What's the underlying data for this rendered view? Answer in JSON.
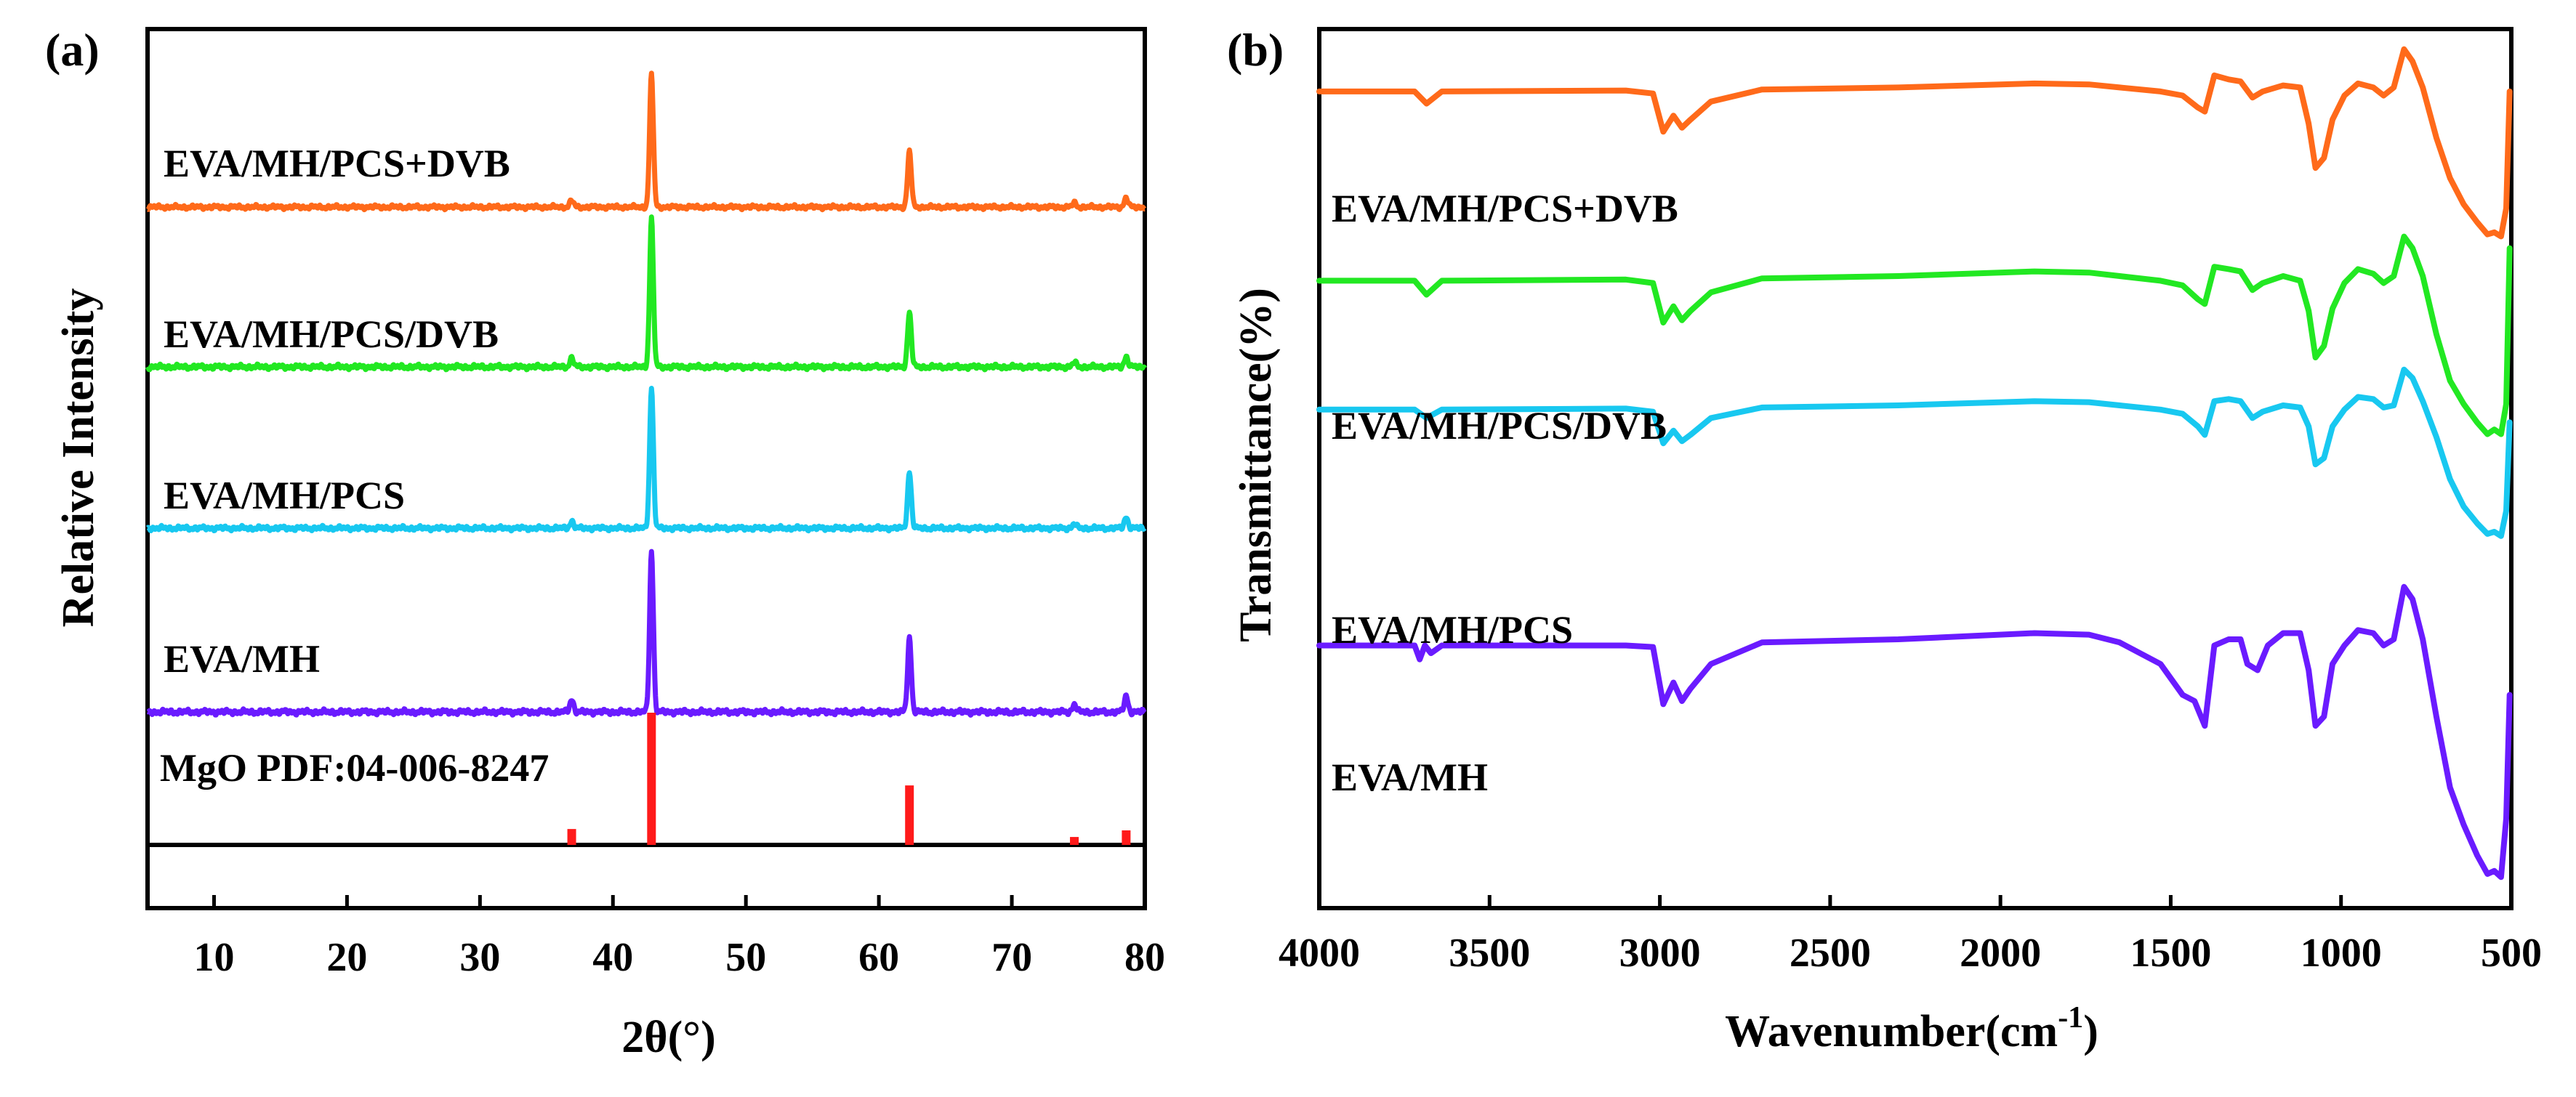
{
  "chart_data": [
    {
      "panel": "(a)",
      "type": "line",
      "xlabel": "2θ(°)",
      "ylabel": "Relative Intensity",
      "xlim": [
        5,
        80
      ],
      "xticks": [
        10,
        20,
        30,
        40,
        50,
        60,
        70,
        80
      ],
      "reference": {
        "label": "MgO PDF:04-006-8247",
        "color": "#ff1a1a",
        "peaks": [
          {
            "x": 36.9,
            "intensity": 12
          },
          {
            "x": 42.9,
            "intensity": 100
          },
          {
            "x": 62.3,
            "intensity": 45
          },
          {
            "x": 74.7,
            "intensity": 6
          },
          {
            "x": 78.6,
            "intensity": 11
          }
        ]
      },
      "series": [
        {
          "name": "EVA/MH",
          "color": "#6a1bff",
          "peaks": [
            {
              "x": 36.9,
              "intensity": 8
            },
            {
              "x": 42.9,
              "intensity": 100
            },
            {
              "x": 62.3,
              "intensity": 46
            },
            {
              "x": 74.7,
              "intensity": 5
            },
            {
              "x": 78.6,
              "intensity": 10
            }
          ]
        },
        {
          "name": "EVA/MH/PCS",
          "color": "#18c8f0",
          "peaks": [
            {
              "x": 36.9,
              "intensity": 5
            },
            {
              "x": 42.9,
              "intensity": 100
            },
            {
              "x": 62.3,
              "intensity": 40
            },
            {
              "x": 74.7,
              "intensity": 3
            },
            {
              "x": 78.6,
              "intensity": 8
            }
          ]
        },
        {
          "name": "EVA/MH/PCS/DVB",
          "color": "#22e822",
          "peaks": [
            {
              "x": 36.9,
              "intensity": 6
            },
            {
              "x": 42.9,
              "intensity": 100
            },
            {
              "x": 62.3,
              "intensity": 37
            },
            {
              "x": 74.7,
              "intensity": 3
            },
            {
              "x": 78.6,
              "intensity": 7
            }
          ]
        },
        {
          "name": "EVA/MH/PCS+DVB",
          "color": "#ff6a1a",
          "peaks": [
            {
              "x": 36.9,
              "intensity": 5
            },
            {
              "x": 42.9,
              "intensity": 100
            },
            {
              "x": 62.3,
              "intensity": 42
            },
            {
              "x": 74.7,
              "intensity": 3
            },
            {
              "x": 78.6,
              "intensity": 7
            }
          ]
        }
      ]
    },
    {
      "panel": "(b)",
      "type": "line",
      "xlabel": "Wavenumber(cm-1)",
      "xlabel_main": "Wavenumber(cm",
      "xlabel_sup": "-1",
      "xlabel_close": ")",
      "ylabel": "Transmittance(%)",
      "xlim": [
        4000,
        500
      ],
      "xticks": [
        4000,
        3500,
        3000,
        2500,
        2000,
        1500,
        1000,
        500
      ],
      "series": [
        {
          "name": "EVA/MH",
          "color": "#6a1bff",
          "transmittance": [
            [
              4000,
              0.78
            ],
            [
              3720,
              0.78
            ],
            [
              3705,
              0.735
            ],
            [
              3690,
              0.78
            ],
            [
              3672,
              0.755
            ],
            [
              3640,
              0.78
            ],
            [
              3100,
              0.78
            ],
            [
              3020,
              0.775
            ],
            [
              2990,
              0.59
            ],
            [
              2960,
              0.66
            ],
            [
              2935,
              0.6
            ],
            [
              2910,
              0.64
            ],
            [
              2850,
              0.72
            ],
            [
              2700,
              0.79
            ],
            [
              2300,
              0.8
            ],
            [
              1900,
              0.82
            ],
            [
              1740,
              0.815
            ],
            [
              1650,
              0.79
            ],
            [
              1530,
              0.72
            ],
            [
              1465,
              0.62
            ],
            [
              1430,
              0.6
            ],
            [
              1400,
              0.52
            ],
            [
              1372,
              0.78
            ],
            [
              1330,
              0.8
            ],
            [
              1295,
              0.8
            ],
            [
              1275,
              0.72
            ],
            [
              1245,
              0.7
            ],
            [
              1215,
              0.78
            ],
            [
              1170,
              0.82
            ],
            [
              1120,
              0.82
            ],
            [
              1095,
              0.7
            ],
            [
              1075,
              0.52
            ],
            [
              1050,
              0.55
            ],
            [
              1025,
              0.72
            ],
            [
              990,
              0.78
            ],
            [
              950,
              0.83
            ],
            [
              905,
              0.82
            ],
            [
              875,
              0.78
            ],
            [
              845,
              0.8
            ],
            [
              815,
              0.97
            ],
            [
              790,
              0.93
            ],
            [
              760,
              0.8
            ],
            [
              720,
              0.55
            ],
            [
              680,
              0.32
            ],
            [
              640,
              0.2
            ],
            [
              600,
              0.1
            ],
            [
              570,
              0.04
            ],
            [
              550,
              0.05
            ],
            [
              530,
              0.03
            ],
            [
              515,
              0.22
            ],
            [
              505,
              0.62
            ]
          ]
        },
        {
          "name": "EVA/MH/PCS",
          "color": "#18c8f0",
          "transmittance": [
            [
              4000,
              0.78
            ],
            [
              3720,
              0.78
            ],
            [
              3685,
              0.74
            ],
            [
              3640,
              0.78
            ],
            [
              3100,
              0.785
            ],
            [
              3020,
              0.77
            ],
            [
              2990,
              0.62
            ],
            [
              2960,
              0.68
            ],
            [
              2935,
              0.63
            ],
            [
              2910,
              0.66
            ],
            [
              2850,
              0.74
            ],
            [
              2700,
              0.79
            ],
            [
              2300,
              0.8
            ],
            [
              1900,
              0.82
            ],
            [
              1740,
              0.815
            ],
            [
              1650,
              0.8
            ],
            [
              1530,
              0.78
            ],
            [
              1465,
              0.76
            ],
            [
              1420,
              0.7
            ],
            [
              1400,
              0.66
            ],
            [
              1372,
              0.82
            ],
            [
              1330,
              0.83
            ],
            [
              1295,
              0.82
            ],
            [
              1260,
              0.74
            ],
            [
              1230,
              0.77
            ],
            [
              1170,
              0.8
            ],
            [
              1120,
              0.79
            ],
            [
              1095,
              0.7
            ],
            [
              1075,
              0.52
            ],
            [
              1050,
              0.55
            ],
            [
              1025,
              0.7
            ],
            [
              990,
              0.78
            ],
            [
              950,
              0.84
            ],
            [
              905,
              0.83
            ],
            [
              875,
              0.79
            ],
            [
              845,
              0.8
            ],
            [
              815,
              0.97
            ],
            [
              790,
              0.93
            ],
            [
              760,
              0.82
            ],
            [
              720,
              0.65
            ],
            [
              680,
              0.45
            ],
            [
              640,
              0.32
            ],
            [
              600,
              0.24
            ],
            [
              570,
              0.19
            ],
            [
              550,
              0.2
            ],
            [
              530,
              0.18
            ],
            [
              515,
              0.3
            ],
            [
              505,
              0.72
            ]
          ]
        },
        {
          "name": "EVA/MH/PCS/DVB",
          "color": "#22e822",
          "transmittance": [
            [
              4000,
              0.78
            ],
            [
              3720,
              0.78
            ],
            [
              3685,
              0.72
            ],
            [
              3640,
              0.78
            ],
            [
              3100,
              0.785
            ],
            [
              3020,
              0.77
            ],
            [
              2990,
              0.6
            ],
            [
              2960,
              0.67
            ],
            [
              2935,
              0.61
            ],
            [
              2910,
              0.65
            ],
            [
              2850,
              0.73
            ],
            [
              2700,
              0.79
            ],
            [
              2300,
              0.8
            ],
            [
              1900,
              0.82
            ],
            [
              1740,
              0.815
            ],
            [
              1650,
              0.8
            ],
            [
              1530,
              0.78
            ],
            [
              1465,
              0.76
            ],
            [
              1420,
              0.7
            ],
            [
              1400,
              0.68
            ],
            [
              1372,
              0.84
            ],
            [
              1330,
              0.83
            ],
            [
              1295,
              0.82
            ],
            [
              1260,
              0.74
            ],
            [
              1230,
              0.77
            ],
            [
              1170,
              0.8
            ],
            [
              1120,
              0.78
            ],
            [
              1095,
              0.65
            ],
            [
              1075,
              0.45
            ],
            [
              1050,
              0.5
            ],
            [
              1025,
              0.66
            ],
            [
              990,
              0.77
            ],
            [
              950,
              0.83
            ],
            [
              905,
              0.81
            ],
            [
              875,
              0.77
            ],
            [
              845,
              0.8
            ],
            [
              815,
              0.97
            ],
            [
              790,
              0.92
            ],
            [
              760,
              0.8
            ],
            [
              720,
              0.55
            ],
            [
              680,
              0.35
            ],
            [
              640,
              0.25
            ],
            [
              600,
              0.17
            ],
            [
              570,
              0.12
            ],
            [
              550,
              0.14
            ],
            [
              530,
              0.12
            ],
            [
              515,
              0.25
            ],
            [
              505,
              0.92
            ]
          ]
        },
        {
          "name": "EVA/MH/PCS+DVB",
          "color": "#ff6a1a",
          "transmittance": [
            [
              4000,
              0.78
            ],
            [
              3720,
              0.78
            ],
            [
              3685,
              0.72
            ],
            [
              3640,
              0.78
            ],
            [
              3100,
              0.785
            ],
            [
              3020,
              0.77
            ],
            [
              2990,
              0.58
            ],
            [
              2960,
              0.66
            ],
            [
              2935,
              0.6
            ],
            [
              2910,
              0.64
            ],
            [
              2850,
              0.73
            ],
            [
              2700,
              0.79
            ],
            [
              2300,
              0.8
            ],
            [
              1900,
              0.82
            ],
            [
              1740,
              0.815
            ],
            [
              1650,
              0.8
            ],
            [
              1530,
              0.78
            ],
            [
              1465,
              0.76
            ],
            [
              1420,
              0.7
            ],
            [
              1400,
              0.68
            ],
            [
              1372,
              0.86
            ],
            [
              1330,
              0.84
            ],
            [
              1295,
              0.83
            ],
            [
              1260,
              0.75
            ],
            [
              1230,
              0.78
            ],
            [
              1170,
              0.81
            ],
            [
              1120,
              0.8
            ],
            [
              1095,
              0.62
            ],
            [
              1075,
              0.4
            ],
            [
              1050,
              0.45
            ],
            [
              1025,
              0.64
            ],
            [
              990,
              0.76
            ],
            [
              950,
              0.82
            ],
            [
              905,
              0.8
            ],
            [
              875,
              0.76
            ],
            [
              845,
              0.8
            ],
            [
              815,
              0.99
            ],
            [
              790,
              0.93
            ],
            [
              760,
              0.8
            ],
            [
              720,
              0.55
            ],
            [
              680,
              0.35
            ],
            [
              640,
              0.22
            ],
            [
              600,
              0.13
            ],
            [
              570,
              0.07
            ],
            [
              550,
              0.08
            ],
            [
              530,
              0.06
            ],
            [
              515,
              0.2
            ],
            [
              505,
              0.78
            ]
          ]
        }
      ]
    }
  ]
}
